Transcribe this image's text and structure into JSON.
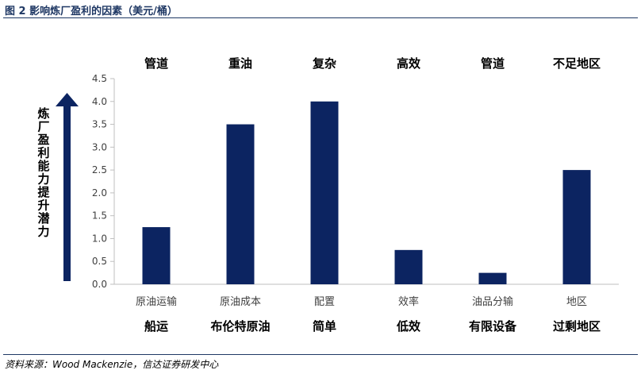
{
  "figure_title": "图 2   影响炼厂盈利的因素（美元/桶）",
  "source_note": "资料来源：Wood Mackenzie，信达证券研发中心",
  "chart_data": {
    "type": "bar",
    "categories": [
      "原油运输",
      "原油成本",
      "配置",
      "效率",
      "油品分输",
      "地区"
    ],
    "values": [
      1.25,
      3.5,
      4.0,
      0.75,
      0.25,
      2.5
    ],
    "top_labels": [
      "管道",
      "重油",
      "复杂",
      "高效",
      "管道",
      "不足地区"
    ],
    "bottom_labels": [
      "船运",
      "布伦特原油",
      "简单",
      "低效",
      "有限设备",
      "过剩地区"
    ],
    "ylabel": "炼厂盈利能力提升潜力",
    "ylim": [
      0,
      4.5
    ],
    "yticks": [
      "0.0",
      "0.5",
      "1.0",
      "1.5",
      "2.0",
      "2.5",
      "3.0",
      "3.5",
      "4.0",
      "4.5"
    ],
    "grid": false,
    "bar_color": "#0c2461",
    "axis_color": "#bfbfbf",
    "arrow_color": "#0c2461"
  }
}
